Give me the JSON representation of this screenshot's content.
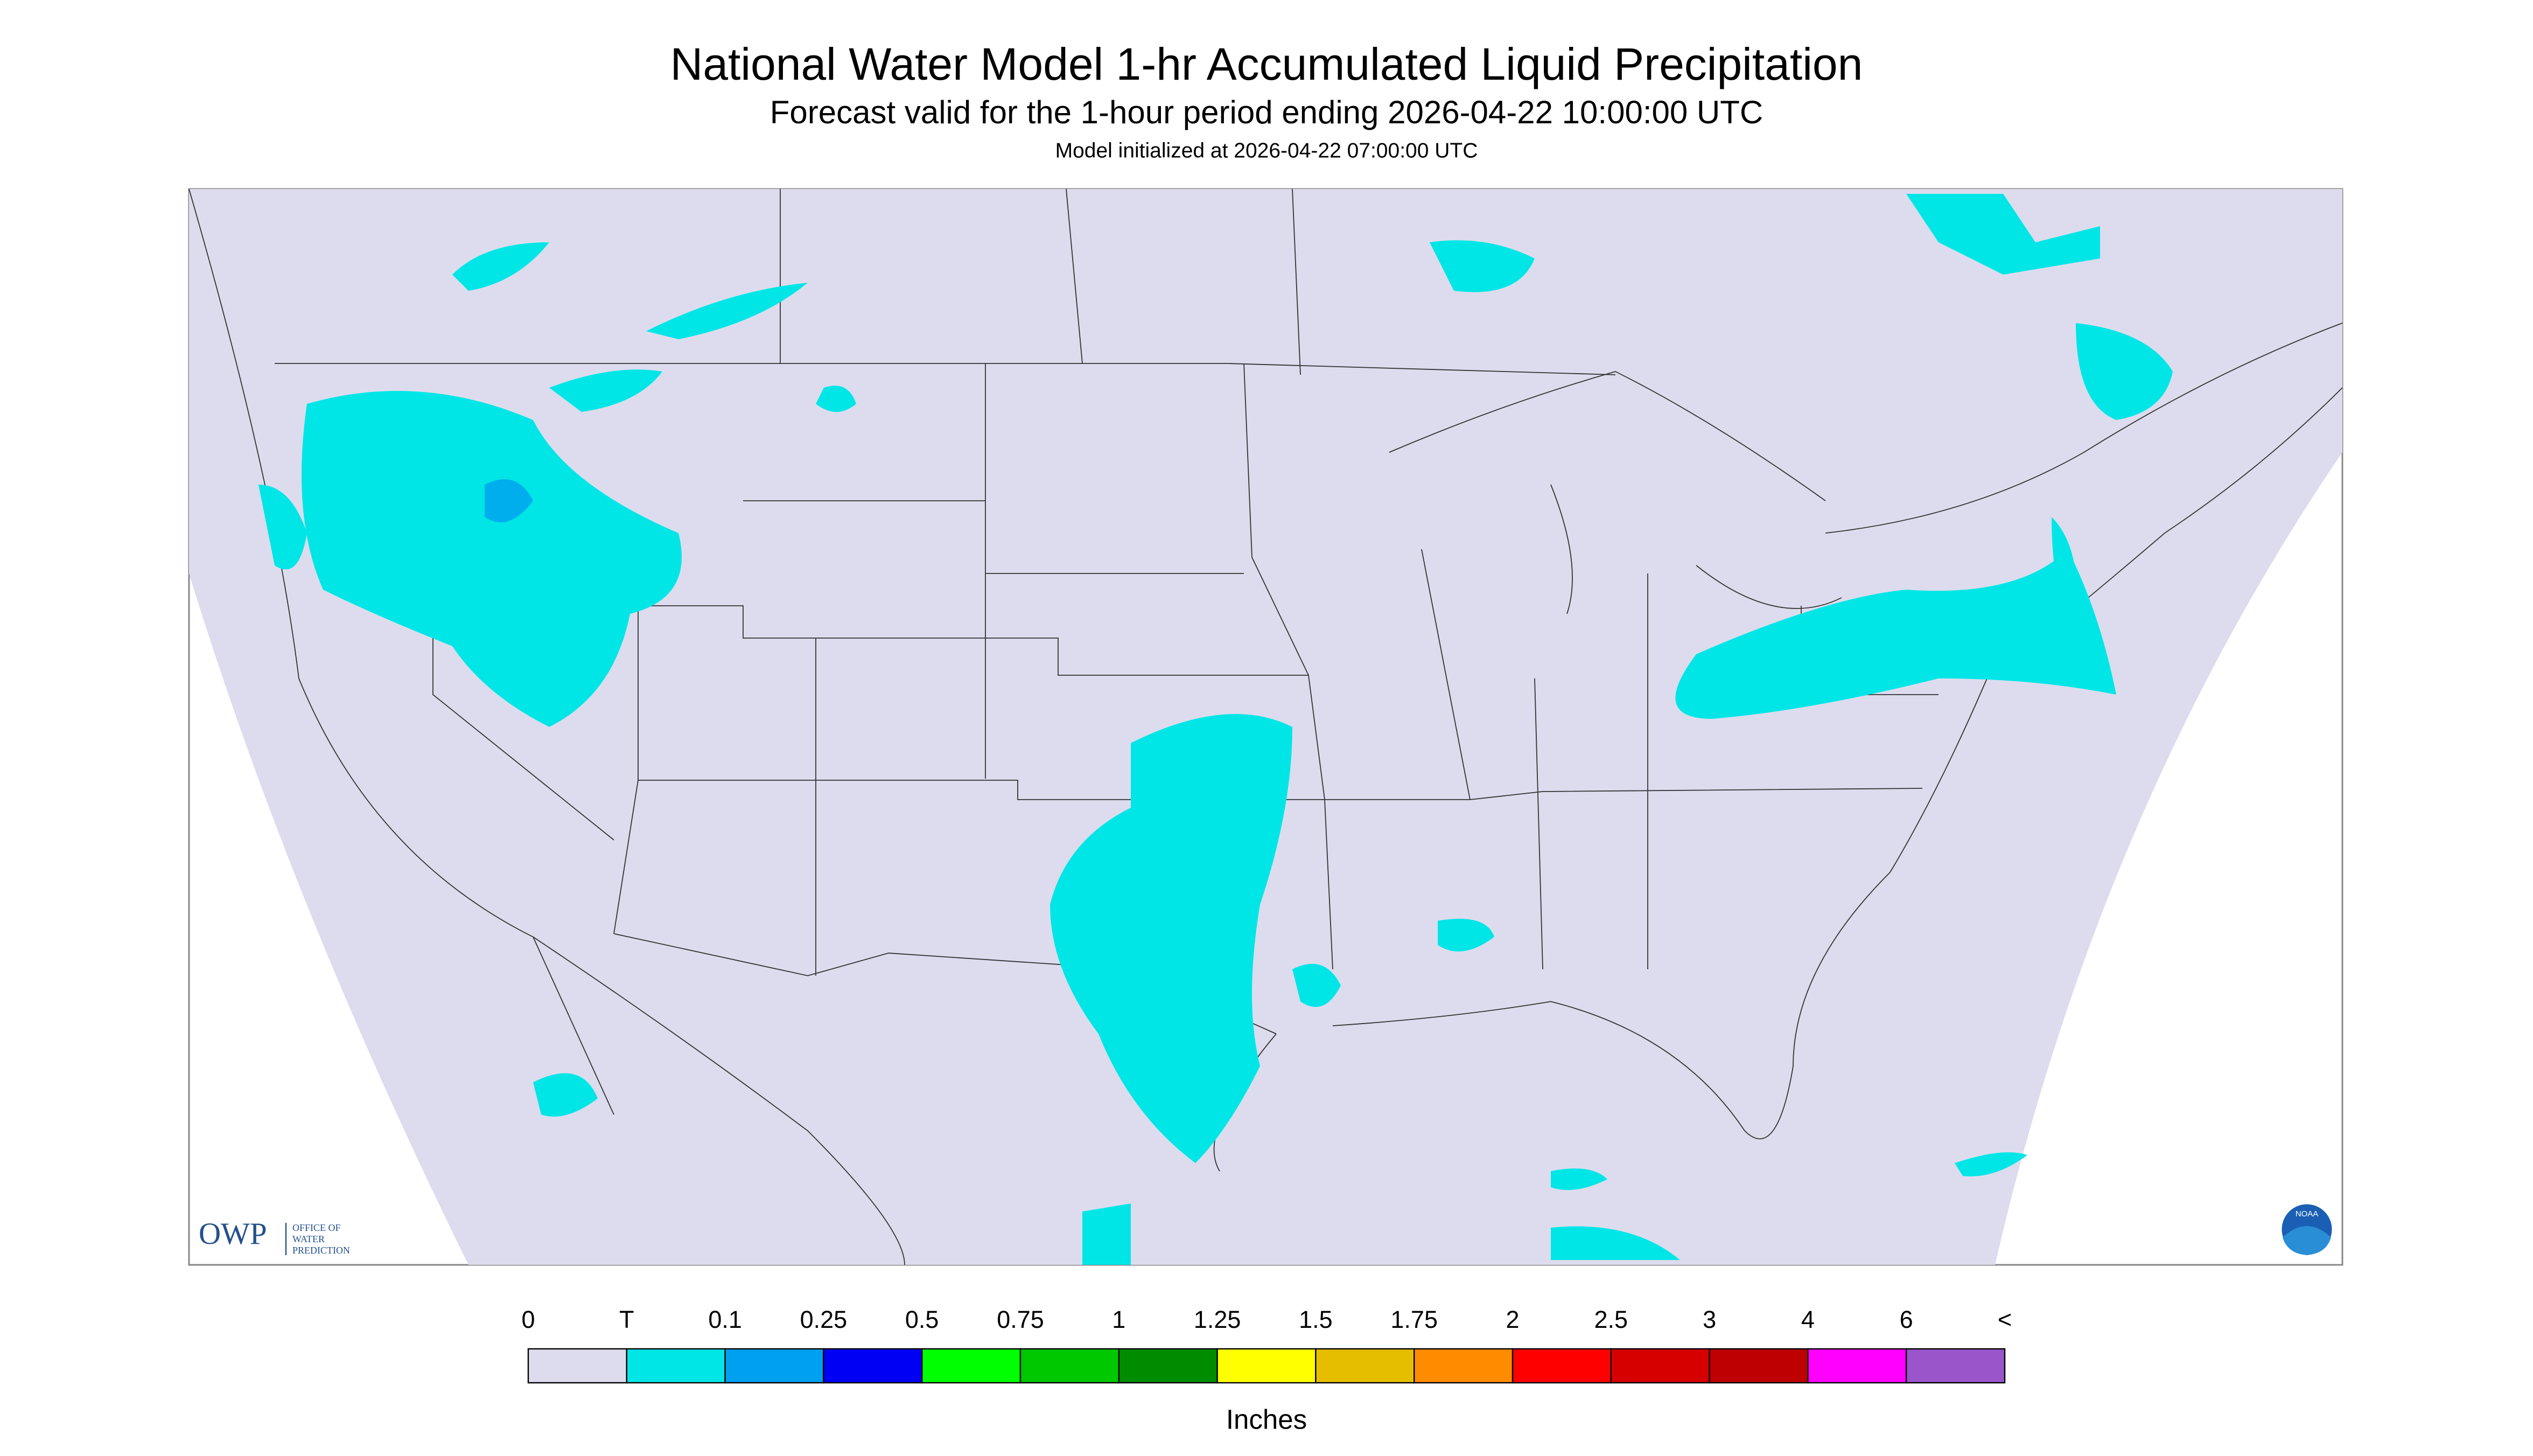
{
  "header": {
    "title": "National Water Model 1-hr Accumulated Liquid Precipitation",
    "subtitle": "Forecast valid for the 1-hour period ending 2026-04-22 10:00:00 UTC",
    "init": "Model initialized at 2026-04-22 07:00:00 UTC"
  },
  "logo": {
    "owp": "OWP",
    "office": [
      "OFFICE OF",
      "WATER",
      "PREDICTION"
    ],
    "noaa": "NOAA"
  },
  "legend": {
    "ticks": [
      0,
      "T",
      0.1,
      0.25,
      0.5,
      0.75,
      1,
      1.25,
      1.5,
      1.75,
      2,
      2.5,
      3,
      4,
      6,
      "<"
    ],
    "colors": [
      "#dcdcee",
      "#00e6e6",
      "#00a0f0",
      "#0000f5",
      "#00ff00",
      "#00c800",
      "#008c00",
      "#ffff00",
      "#e6be00",
      "#ff8c00",
      "#ff0000",
      "#d70000",
      "#be0000",
      "#ff00ff",
      "#9955c9"
    ],
    "unit": "Inches"
  }
}
